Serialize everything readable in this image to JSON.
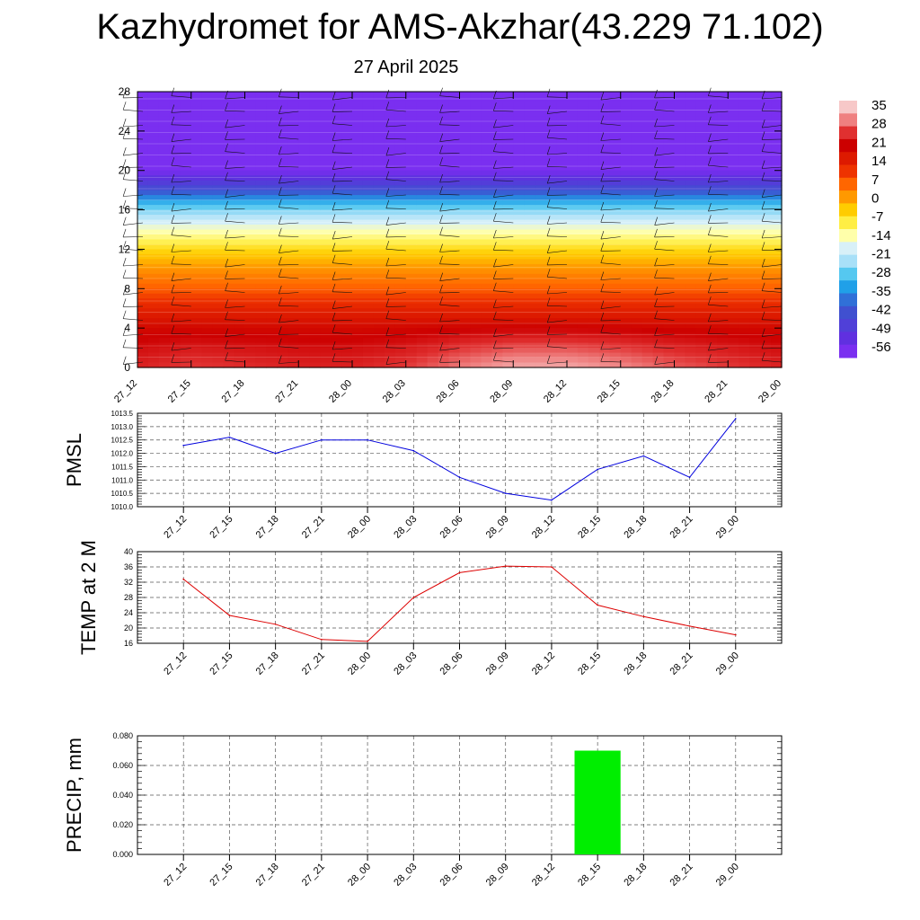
{
  "title": "Kazhydromet for AMS-Akzhar(43.229 71.102)",
  "subtitle": "27 April 2025",
  "time_labels": [
    "27_12",
    "27_15",
    "27_18",
    "27_21",
    "28_00",
    "28_03",
    "28_06",
    "28_09",
    "28_12",
    "28_15",
    "28_18",
    "28_21",
    "29_00"
  ],
  "colors": {
    "pmsl_line": "#0000dd",
    "temp_line": "#dd0000",
    "precip_bar": "#00ee00",
    "grid": "#555555"
  },
  "chart_data": [
    {
      "type": "heatmap",
      "name": "temperature cross-section",
      "y_ticks": [
        "0",
        "4",
        "8",
        "12",
        "16",
        "20",
        "24",
        "28"
      ],
      "ylim": [
        0,
        28
      ],
      "colorbar_labels": [
        "35",
        "28",
        "21",
        "14",
        "7",
        "0",
        "-7",
        "-14",
        "-21",
        "-28",
        "-35",
        "-42",
        "-49",
        "-56"
      ],
      "colorbar_colors": [
        "#f7c8c8",
        "#ef8080",
        "#e03030",
        "#cc0000",
        "#dd1a00",
        "#ee3300",
        "#ff6600",
        "#ff9900",
        "#ffcc00",
        "#ffee44",
        "#ffffaa",
        "#d8f0f8",
        "#a8e0f8",
        "#55c8f0",
        "#20a0e8",
        "#3070d8",
        "#4050d0",
        "#5040d8",
        "#6030e0",
        "#7a2ff0"
      ],
      "colorbar_range": [
        -56,
        35
      ],
      "levels_height": [
        0,
        2,
        4,
        6,
        8,
        10,
        12,
        13,
        14,
        16,
        17,
        18,
        19,
        20,
        22,
        28
      ],
      "levels_temp": [
        24,
        22,
        19,
        14,
        7,
        2,
        -5,
        -10,
        -14,
        -25,
        -32,
        -42,
        -49,
        -56,
        -60,
        -60
      ],
      "surface_warm_bump": [
        0,
        2,
        1,
        0,
        0,
        2,
        6,
        9,
        9,
        7,
        4,
        2,
        0
      ]
    },
    {
      "type": "line",
      "ylabel": "PMSL",
      "ylim": [
        1010.0,
        1013.5
      ],
      "y_ticks": [
        "1010.0",
        "1010.5",
        "1011.0",
        "1011.5",
        "1012.0",
        "1012.5",
        "1013.0",
        "1013.5"
      ],
      "series": [
        {
          "values": [
            1012.3,
            1012.6,
            1012.0,
            1012.5,
            1012.5,
            1012.1,
            1011.1,
            1010.5,
            1010.25,
            1011.4,
            1011.9,
            1011.1,
            1013.3
          ]
        }
      ]
    },
    {
      "type": "line",
      "ylabel": "TEMP at 2 M",
      "ylim": [
        16,
        40
      ],
      "y_ticks": [
        "16",
        "20",
        "24",
        "28",
        "32",
        "36",
        "40"
      ],
      "series": [
        {
          "values": [
            32.8,
            23.3,
            21.0,
            17.0,
            16.5,
            28.0,
            34.5,
            36.2,
            36.0,
            26.0,
            23.0,
            20.5,
            18.2
          ]
        }
      ]
    },
    {
      "type": "bar",
      "ylabel": "PRECIP, mm",
      "ylim": [
        0,
        0.08
      ],
      "y_ticks": [
        "0.000",
        "0.020",
        "0.040",
        "0.060",
        "0.080"
      ],
      "values": [
        0,
        0,
        0,
        0,
        0,
        0,
        0,
        0,
        0,
        0.07,
        0,
        0,
        0
      ]
    }
  ]
}
